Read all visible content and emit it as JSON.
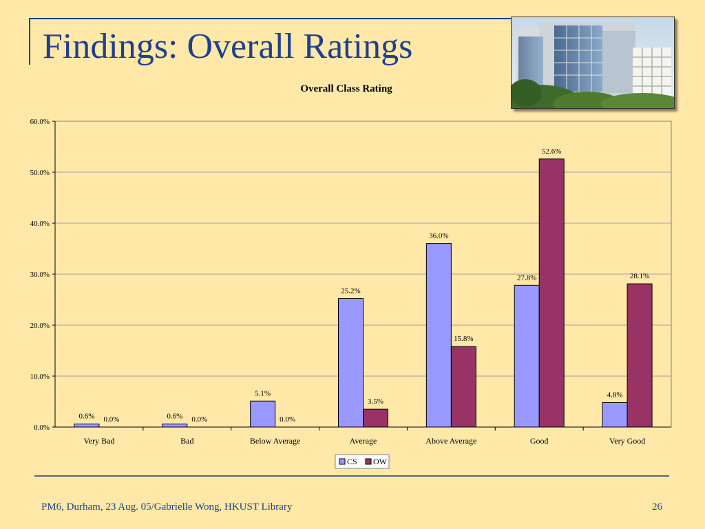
{
  "slide": {
    "title": "Findings: Overall Ratings",
    "footer": "PM6, Durham, 23 Aug. 05/Gabrielle Wong, HKUST Library",
    "page_number": "26"
  },
  "photo": {
    "icon": "campus-building-photo"
  },
  "colors": {
    "background": "#FFE8A8",
    "title": "#1F3F8F",
    "cs": "#9999FF",
    "ow": "#993366"
  },
  "chart_data": {
    "type": "bar",
    "title": "Overall Class Rating",
    "categories": [
      "Very Bad",
      "Bad",
      "Below Average",
      "Average",
      "Above Average",
      "Good",
      "Very Good"
    ],
    "series": [
      {
        "name": "CS",
        "values": [
          0.6,
          0.6,
          5.1,
          25.2,
          36.0,
          27.8,
          4.8
        ],
        "labels": [
          "0.6%",
          "0.6%",
          "5.1%",
          "25.2%",
          "36.0%",
          "27.8%",
          "4.8%"
        ]
      },
      {
        "name": "OW",
        "values": [
          0.0,
          0.0,
          0.0,
          3.5,
          15.8,
          52.6,
          28.1
        ],
        "labels": [
          "0.0%",
          "0.0%",
          "0.0%",
          "3.5%",
          "15.8%",
          "52.6%",
          "28.1%"
        ]
      }
    ],
    "yticks": [
      "0.0%",
      "10.0%",
      "20.0%",
      "30.0%",
      "40.0%",
      "50.0%",
      "60.0%"
    ],
    "ylim": [
      0,
      60
    ],
    "grid": true,
    "legend": "bottom-center"
  }
}
